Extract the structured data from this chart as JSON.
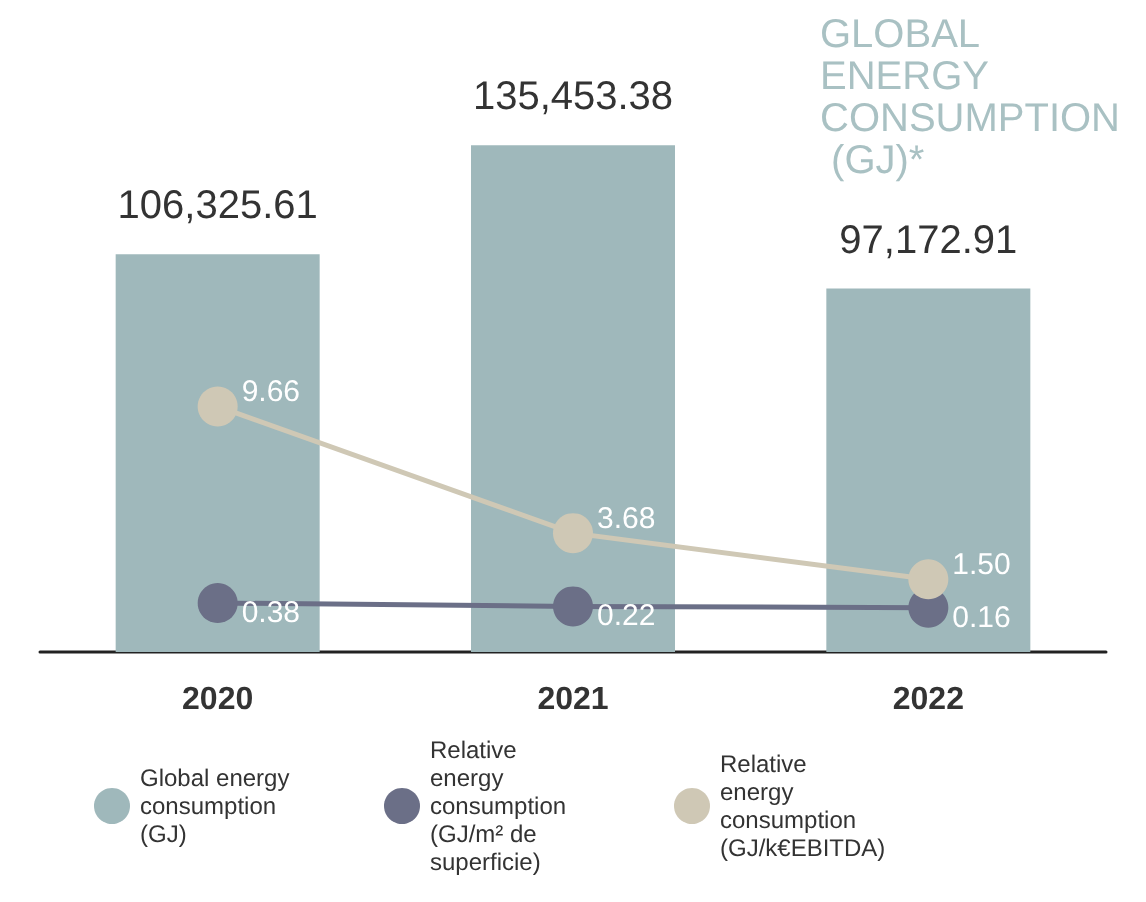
{
  "chart_data": {
    "type": "bar",
    "title": "GLOBAL ENERGY CONSUMPTION (GJ)*",
    "categories": [
      "2020",
      "2021",
      "2022"
    ],
    "series": [
      {
        "name": "Global energy consumption (GJ)",
        "color": "#9fb8bb",
        "values": [
          106325.61,
          135453.38,
          97172.91
        ],
        "value_labels": [
          "106,325.61",
          "135,453.38",
          "97,172.91"
        ]
      },
      {
        "name": "Relative energy consumption (GJ/m² de superficie)",
        "type": "line",
        "axis": "y2",
        "color": "#6b6f87",
        "values": [
          0.38,
          0.22,
          0.16
        ],
        "value_labels": [
          "0.38",
          "0.22",
          "0.16"
        ]
      },
      {
        "name": "Relative energy consumption (GJ/k€EBITDA)",
        "type": "line",
        "axis": "y2",
        "color": "#cfc8b5",
        "values": [
          9.66,
          3.68,
          1.5
        ],
        "value_labels": [
          "9.66",
          "3.68",
          "1.50"
        ]
      }
    ],
    "legend": "bottom",
    "tick_labels": "x",
    "marker": "circle"
  }
}
